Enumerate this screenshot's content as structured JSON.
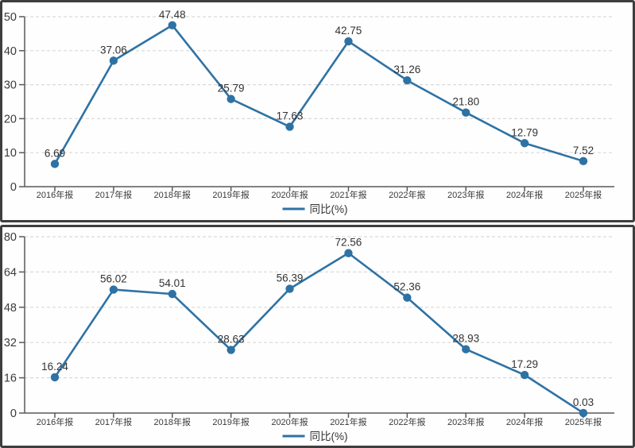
{
  "chart_data": [
    {
      "type": "line",
      "title": "",
      "categories": [
        "2016年报",
        "2017年报",
        "2018年报",
        "2019年报",
        "2020年报",
        "2021年报",
        "2022年报",
        "2023年报",
        "2024年报",
        "2025年报"
      ],
      "series": [
        {
          "name": "同比(%)",
          "values": [
            6.69,
            37.06,
            47.48,
            25.79,
            17.63,
            42.75,
            31.26,
            21.8,
            12.79,
            7.52
          ],
          "point_labels": [
            "6.69",
            "37.06",
            "47.48",
            "25.79",
            "17.63",
            "42.75",
            "31.26",
            "21.80",
            "12.79",
            "7.52"
          ]
        }
      ],
      "legend": {
        "label": "同比(%)",
        "position": "bottom-center"
      },
      "xlabel": "",
      "ylabel": "",
      "ylim": [
        0,
        50
      ],
      "y_ticks": [
        0,
        10,
        20,
        30,
        40,
        50
      ],
      "grid": "horizontal-dashed",
      "colors": {
        "line": "#2e72a4",
        "marker": "#2e72a4",
        "grid": "#d9d9d9",
        "axis": "#595959",
        "tick_text": "#3a3a3a",
        "data_label_text": "#333333"
      }
    },
    {
      "type": "line",
      "title": "",
      "categories": [
        "2016年报",
        "2017年报",
        "2018年报",
        "2019年报",
        "2020年报",
        "2021年报",
        "2022年报",
        "2023年报",
        "2024年报",
        "2025年报"
      ],
      "series": [
        {
          "name": "同比(%)",
          "values": [
            16.24,
            56.02,
            54.01,
            28.63,
            56.39,
            72.56,
            52.36,
            28.93,
            17.29,
            0.03
          ],
          "point_labels": [
            "16.24",
            "56.02",
            "54.01",
            "28.63",
            "56.39",
            "72.56",
            "52.36",
            "28.93",
            "17.29",
            "0.03"
          ]
        }
      ],
      "legend": {
        "label": "同比(%)",
        "position": "bottom-center"
      },
      "xlabel": "",
      "ylabel": "",
      "ylim": [
        0,
        80
      ],
      "y_ticks": [
        0,
        16,
        32,
        48,
        64,
        80
      ],
      "grid": "horizontal-dashed",
      "colors": {
        "line": "#2e72a4",
        "marker": "#2e72a4",
        "grid": "#d9d9d9",
        "axis": "#595959",
        "tick_text": "#3a3a3a",
        "data_label_text": "#333333"
      }
    }
  ]
}
